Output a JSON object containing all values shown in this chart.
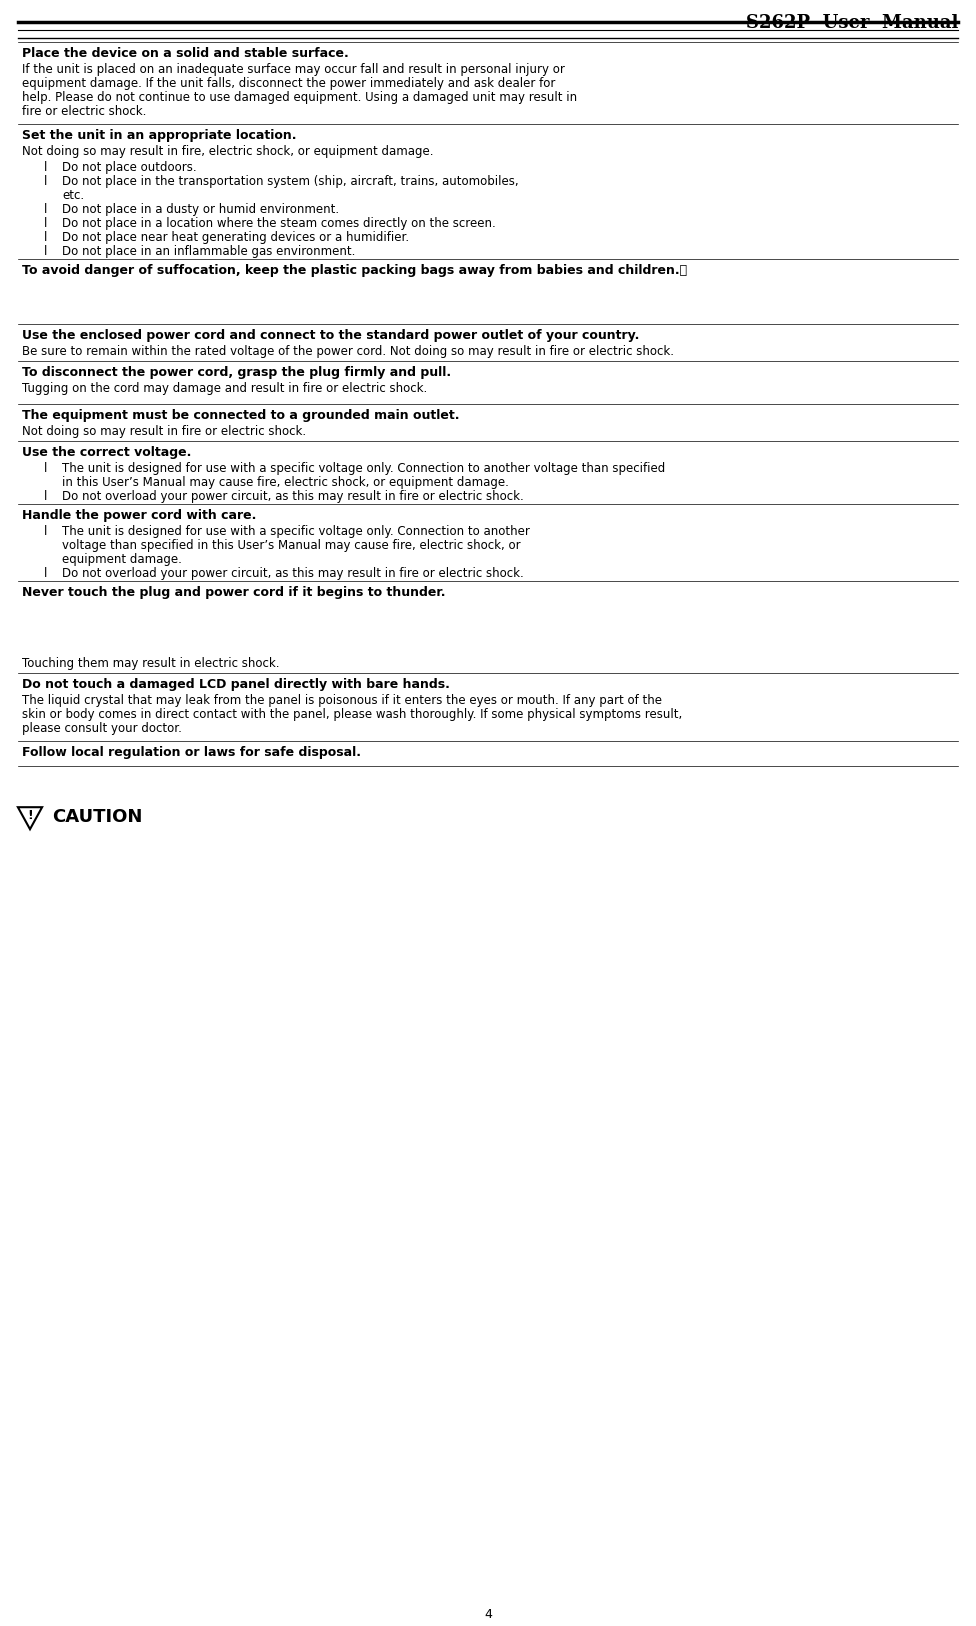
{
  "title": "S262P  User  Manual",
  "page_number": "4",
  "bg_color": "#ffffff",
  "header_line_color": "#000000",
  "section_line_color": "#000000",
  "sections": [
    {
      "heading": "Place the device on a solid and stable surface.",
      "body": "If the unit is placed on an inadequate surface may occur fall and result in personal injury or\nequipment damage. If the unit falls, disconnect the power immediately and ask dealer for\nhelp. Please do not continue to use damaged equipment. Using a damaged unit may result in\nfire or electric shock.",
      "bullets": [],
      "has_image": true,
      "image_side": "right"
    },
    {
      "heading": "Set the unit in an appropriate location.",
      "body": "Not doing so may result in fire, electric shock, or equipment damage.",
      "bullets": [
        "Do not place outdoors.",
        "Do not place in the transportation system (ship, aircraft, trains, automobiles,\n        etc.",
        "Do not place in a dusty or humid environment.",
        "Do not place in a location where the steam comes directly on the screen.",
        "Do not place near heat generating devices or a humidifier.",
        "Do not place in an inflammable gas environment."
      ],
      "has_image": true,
      "image_side": "right"
    },
    {
      "heading": "To avoid danger of suffocation, keep the plastic packing bags away from babies and children.。",
      "body": "",
      "bullets": [],
      "has_image": true,
      "image_side": "right",
      "extra_space": true
    },
    {
      "heading": "Use the enclosed power cord and connect to the standard power outlet of your country.",
      "body": "Be sure to remain within the rated voltage of the power cord. Not doing so may result in fire or electric shock.",
      "bullets": [],
      "has_image": false
    },
    {
      "heading": "To disconnect the power cord, grasp the plug firmly and pull.",
      "body": "Tugging on the cord may damage and result in fire or electric shock.",
      "bullets": [],
      "has_image": true,
      "image_side": "right"
    },
    {
      "heading": "The equipment must be connected to a grounded main outlet.",
      "body": "Not doing so may result in fire or electric shock.",
      "bullets": [],
      "has_image": true,
      "image_side": "right"
    },
    {
      "heading": "Use the correct voltage.",
      "body": "",
      "bullets": [
        "The unit is designed for use with a specific voltage only. Connection to another voltage than specified\n        in this User’s Manual may cause fire, electric shock, or equipment damage.",
        "Do not overload your power circuit, as this may result in fire or electric shock."
      ],
      "has_image": false
    },
    {
      "heading": "Handle the power cord with care.",
      "body": "",
      "bullets": [
        "The unit is designed for use with a specific voltage only. Connection to another\n        voltage than specified in this User’s Manual may cause fire, electric shock, or\n        equipment damage.",
        "Do not overload your power circuit, as this may result in fire or electric shock."
      ],
      "has_image": true,
      "image_side": "right"
    },
    {
      "heading": "Never touch the plug and power cord if it begins to thunder.",
      "body": "\n\nTouching them may result in electric shock.",
      "bullets": [],
      "has_image": true,
      "image_side": "center_below_heading"
    },
    {
      "heading": "Do not touch a damaged LCD panel directly with bare hands.",
      "body": "The liquid crystal that may leak from the panel is poisonous if it enters the eyes or mouth. If any part of the\nskin or body comes in direct contact with the panel, please wash thoroughly. If some physical symptoms result,\nplease consult your doctor.",
      "bullets": [],
      "has_image": true,
      "image_side": "right"
    },
    {
      "heading": "Follow local regulation or laws for safe disposal.",
      "body": "",
      "bullets": [],
      "has_image": false,
      "is_last_section": true
    }
  ],
  "caution_text": "CAUTION",
  "font_sizes": {
    "title": 13,
    "heading": 9,
    "body": 8.5,
    "bullet": 8.5,
    "page_num": 9
  }
}
